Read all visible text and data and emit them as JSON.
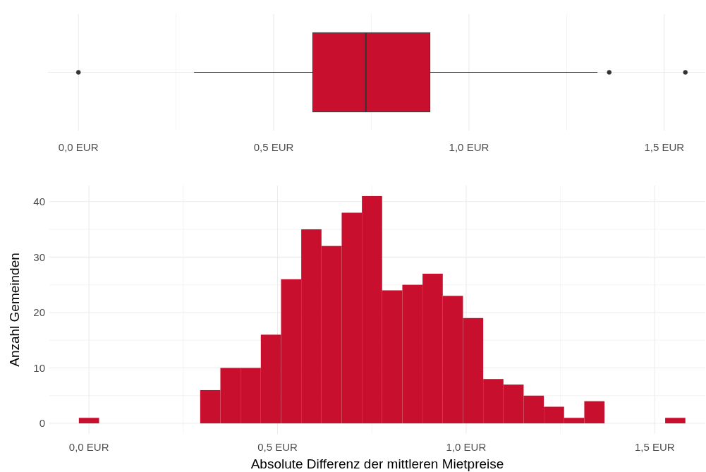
{
  "chart_data": [
    {
      "type": "box",
      "orientation": "horizontal",
      "categories": [
        null
      ],
      "color": "#c8102e",
      "boxes": [
        {
          "low": 0.296,
          "q1": 0.6,
          "median": 0.736,
          "q3": 0.9,
          "high": 1.329,
          "outliers": [
            0,
            1.359,
            1.554
          ]
        }
      ],
      "xlim": [
        -0.078,
        1.605
      ],
      "xticks": [
        {
          "value": 0,
          "label": "0,0 EUR"
        },
        {
          "value": 0.25,
          "label": null
        },
        {
          "value": 0.5,
          "label": "0,5 EUR"
        },
        {
          "value": 0.75,
          "label": null
        },
        {
          "value": 1,
          "label": "1,0 EUR"
        },
        {
          "value": 1.25,
          "label": null
        },
        {
          "value": 1.5,
          "label": "1,5 EUR"
        }
      ],
      "grid": true,
      "tick_labels": "x"
    },
    {
      "type": "histogram",
      "color": "#c8102e",
      "xlabel": "Absolute Differenz der mittleren Mietpreise",
      "ylabel": "Anzahl Gemeinden",
      "bins": [
        -0.0268,
        0.0268,
        0.0804,
        0.134,
        0.1876,
        0.2412,
        0.2948,
        0.3484,
        0.402,
        0.4556,
        0.5092,
        0.5628,
        0.6164,
        0.67,
        0.7236,
        0.7772,
        0.8308,
        0.8844,
        0.938,
        0.9916,
        1.0452,
        1.0988,
        1.1524,
        1.206,
        1.2596,
        1.3132,
        1.3668,
        1.4204,
        1.474,
        1.5276,
        1.5812
      ],
      "values": [
        1,
        0,
        0,
        0,
        0,
        0,
        6,
        10,
        10,
        16,
        26,
        35,
        32,
        38,
        41,
        24,
        25,
        27,
        23,
        19,
        8,
        7,
        5,
        3,
        1,
        4,
        0,
        0,
        0,
        1
      ],
      "xlim": [
        -0.105,
        1.634
      ],
      "xticks": [
        {
          "value": 0,
          "label": "0,0 EUR"
        },
        {
          "value": 0.25,
          "label": null
        },
        {
          "value": 0.5,
          "label": "0,5 EUR"
        },
        {
          "value": 0.75,
          "label": null
        },
        {
          "value": 1,
          "label": "1,0 EUR"
        },
        {
          "value": 1.25,
          "label": null
        },
        {
          "value": 1.5,
          "label": "1,5 EUR"
        }
      ],
      "ylim": [
        -1.9,
        42.9
      ],
      "yticks": [
        0,
        {
          "value": 5,
          "label": null
        },
        10,
        {
          "value": 15,
          "label": null
        },
        20,
        {
          "value": 25,
          "label": null
        },
        30,
        {
          "value": 35,
          "label": null
        },
        40
      ],
      "grid": true
    }
  ]
}
